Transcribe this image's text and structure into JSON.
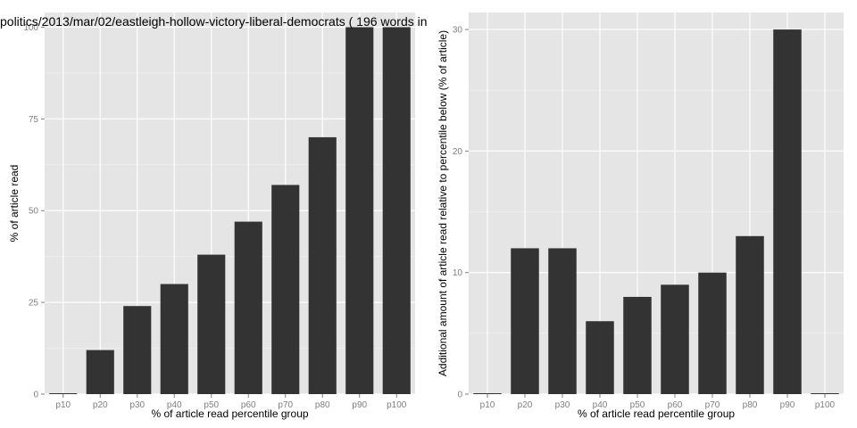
{
  "title": "politics/2013/mar/02/eastleigh-hollow-victory-liberal-democrats ( 196 words in",
  "chart_data": [
    {
      "type": "bar",
      "categories": [
        "p10",
        "p20",
        "p30",
        "p40",
        "p50",
        "p60",
        "p70",
        "p80",
        "p90",
        "p100"
      ],
      "values": [
        0,
        12,
        24,
        30,
        38,
        47,
        57,
        70,
        100,
        100
      ],
      "xlabel": "% of article read percentile group",
      "ylabel": "% of article read",
      "ylim": [
        0,
        104
      ],
      "yticks": [
        0,
        25,
        50,
        75,
        100
      ],
      "grid": true,
      "colors": {
        "bar": "#333333",
        "panel": "#e5e5e5",
        "grid": "#ffffff"
      }
    },
    {
      "type": "bar",
      "categories": [
        "p10",
        "p20",
        "p30",
        "p40",
        "p50",
        "p60",
        "p70",
        "p80",
        "p90",
        "p100"
      ],
      "values": [
        0,
        12,
        12,
        6,
        8,
        9,
        10,
        13,
        30,
        0
      ],
      "xlabel": "% of article read percentile group",
      "ylabel": "Additional amount of article read relative to percentile below (% of article)",
      "ylim": [
        0,
        31.4
      ],
      "yticks": [
        0,
        10,
        20,
        30
      ],
      "grid": true,
      "colors": {
        "bar": "#333333",
        "panel": "#e5e5e5",
        "grid": "#ffffff"
      }
    }
  ]
}
